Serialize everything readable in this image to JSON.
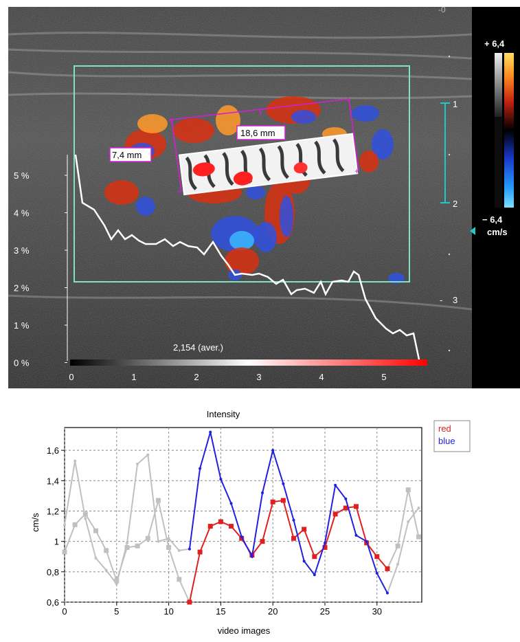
{
  "ultrasound": {
    "colors": {
      "roi_box": "#7fe3c8",
      "measure": "#d020d0",
      "curve": "#ffffff",
      "depth_marker": "#20c8c8",
      "doppler_red": "#d83010",
      "doppler_orange": "#ff9a2a",
      "doppler_blue": "#3050e0",
      "doppler_cyan": "#3ab8ff"
    },
    "measure_width": "18,6 mm",
    "measure_height": "7,4 mm",
    "average_label": "2,154 (aver.)",
    "y_axis_ticks": [
      "5 %",
      "4 %",
      "3 %",
      "2 %",
      "1 %",
      "0 %"
    ],
    "x_axis_ticks": [
      "0",
      "1",
      "2",
      "3",
      "4",
      "5"
    ],
    "depth_labels": [
      "1",
      "2",
      "3"
    ],
    "scale_top": "+ 6,4",
    "scale_bottom": "− 6,4",
    "scale_unit": "cm/s",
    "top_mark": "-0"
  },
  "chart_data": {
    "type": "line",
    "title": "Intensity",
    "xlabel": "video images",
    "ylabel": "cm/s",
    "xlim": [
      0,
      34.3
    ],
    "ylim": [
      0.6,
      1.75
    ],
    "x_ticks": [
      "0",
      "5",
      "10",
      "15",
      "20",
      "25",
      "30"
    ],
    "y_ticks": [
      "0,6",
      "0,8",
      "1",
      "1,2",
      "1,4",
      "1,6"
    ],
    "grid": true,
    "legend_position": "top-right",
    "series": [
      {
        "name": "red",
        "color": "#e02020",
        "x": [
          0,
          1,
          2,
          3,
          4,
          5,
          6,
          7,
          8,
          9,
          10,
          11,
          12,
          13,
          14,
          15,
          16,
          17,
          18,
          19,
          20,
          21,
          22,
          23,
          24,
          25,
          26,
          27,
          28,
          29,
          30,
          31,
          32,
          33,
          34
        ],
        "y": [
          0.93,
          1.11,
          1.18,
          1.07,
          0.94,
          0.74,
          0.96,
          0.97,
          1.02,
          1.27,
          0.96,
          0.75,
          0.6,
          0.93,
          1.1,
          1.13,
          1.1,
          1.02,
          0.91,
          1.0,
          1.26,
          1.27,
          1.02,
          1.08,
          0.9,
          0.96,
          1.18,
          1.22,
          1.23,
          0.99,
          0.9,
          0.82,
          0.97,
          1.34,
          1.03
        ]
      },
      {
        "name": "blue",
        "color": "#2020e0",
        "x": [
          0,
          1,
          2,
          3,
          4,
          5,
          6,
          7,
          8,
          9,
          10,
          11,
          12,
          13,
          14,
          15,
          16,
          17,
          18,
          19,
          20,
          21,
          22,
          23,
          24,
          25,
          26,
          27,
          28,
          29,
          30,
          31,
          32,
          33,
          34
        ],
        "y": [
          1.11,
          1.53,
          1.15,
          0.89,
          0.81,
          0.72,
          0.99,
          1.51,
          1.57,
          1.0,
          1.02,
          0.94,
          0.95,
          1.48,
          1.72,
          1.41,
          1.25,
          1.03,
          0.9,
          1.32,
          1.6,
          1.38,
          1.14,
          0.87,
          0.78,
          0.99,
          1.37,
          1.28,
          1.04,
          1.0,
          0.79,
          0.66,
          0.85,
          1.13,
          1.22
        ]
      }
    ],
    "active_range": [
      12,
      31
    ],
    "inactive_color": "#c0c0c0"
  }
}
